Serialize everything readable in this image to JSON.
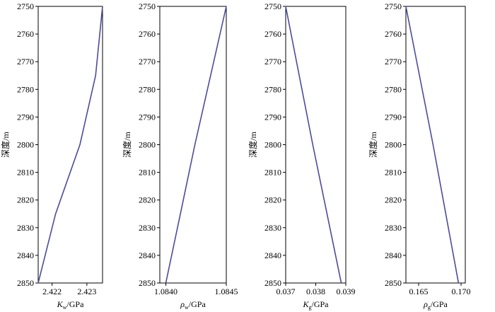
{
  "figure": {
    "line_color": "#4b4b9c",
    "frame_color": "#000000"
  },
  "chart_data": [
    {
      "type": "line",
      "ylabel": "深度/m",
      "xlabel": {
        "symbol": "K",
        "subscript": "w",
        "unit": "/GPa"
      },
      "ylim": [
        2750,
        2850
      ],
      "y_inverted": true,
      "yticks": [
        2750,
        2760,
        2770,
        2780,
        2790,
        2800,
        2810,
        2820,
        2830,
        2840,
        2850
      ],
      "xlim": [
        2.4216,
        2.42345
      ],
      "xticks": [
        2.422,
        2.423
      ],
      "xtick_labels": [
        "2.422",
        "2.423"
      ],
      "series": [
        {
          "x": [
            2.42345,
            2.42325,
            2.4228,
            2.4221,
            2.4216
          ],
          "y": [
            2750,
            2775,
            2800,
            2825,
            2850
          ]
        }
      ]
    },
    {
      "type": "line",
      "ylabel": "深度/m",
      "xlabel": {
        "symbol": "ρ",
        "subscript": "w",
        "unit": "/GPa"
      },
      "ylim": [
        2750,
        2850
      ],
      "y_inverted": true,
      "yticks": [
        2750,
        2760,
        2770,
        2780,
        2790,
        2800,
        2810,
        2820,
        2830,
        2840,
        2850
      ],
      "xlim": [
        1.08395,
        1.0845
      ],
      "xticks": [
        1.084,
        1.0845
      ],
      "xtick_labels": [
        "1.0840",
        "1.0845"
      ],
      "series": [
        {
          "x": [
            1.0845,
            1.08437,
            1.08424,
            1.08412,
            1.084
          ],
          "y": [
            2750,
            2775,
            2800,
            2825,
            2850
          ]
        }
      ]
    },
    {
      "type": "line",
      "ylabel": "深度/m",
      "xlabel": {
        "symbol": "K",
        "subscript": "g",
        "unit": "/GPa"
      },
      "ylim": [
        2750,
        2850
      ],
      "y_inverted": true,
      "yticks": [
        2750,
        2760,
        2770,
        2780,
        2790,
        2800,
        2810,
        2820,
        2830,
        2840,
        2850
      ],
      "xlim": [
        0.037,
        0.039
      ],
      "xticks": [
        0.037,
        0.038,
        0.039
      ],
      "xtick_labels": [
        "0.037",
        "0.038",
        "0.039"
      ],
      "series": [
        {
          "x": [
            0.037,
            0.0379,
            0.03885
          ],
          "y": [
            2750,
            2800,
            2850
          ]
        }
      ]
    },
    {
      "type": "line",
      "ylabel": "深度/m",
      "xlabel": {
        "symbol": "ρ",
        "subscript": "g",
        "unit": "/GPa"
      },
      "ylim": [
        2750,
        2850
      ],
      "y_inverted": true,
      "yticks": [
        2750,
        2760,
        2770,
        2780,
        2790,
        2800,
        2810,
        2820,
        2830,
        2840,
        2850
      ],
      "xlim": [
        0.1635,
        0.1705
      ],
      "xticks": [
        0.165,
        0.17
      ],
      "xtick_labels": [
        "0.165",
        "0.170"
      ],
      "series": [
        {
          "x": [
            0.1635,
            0.1667,
            0.1697
          ],
          "y": [
            2750,
            2800,
            2850
          ]
        }
      ]
    }
  ]
}
